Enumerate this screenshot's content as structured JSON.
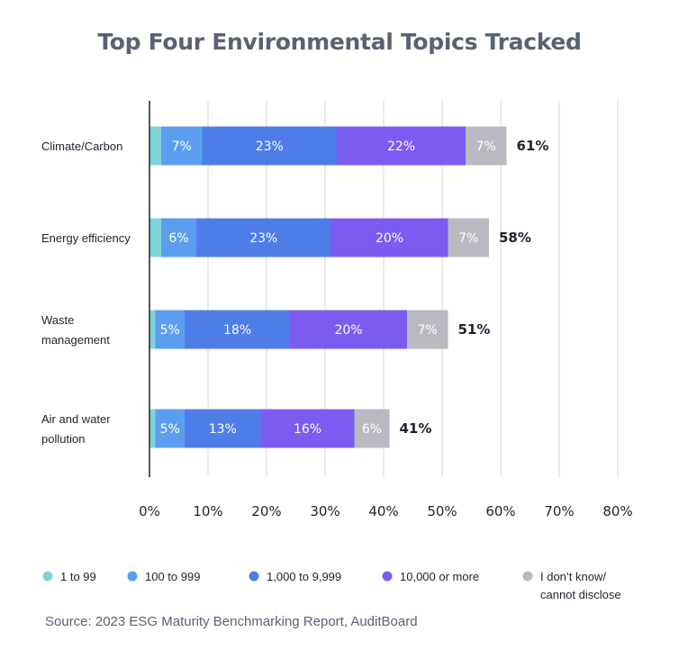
{
  "chart_data": {
    "type": "bar",
    "orientation": "horizontal",
    "stacked": true,
    "title": "Top Four Environmental Topics Tracked",
    "categories": [
      [
        "Climate/Carbon"
      ],
      [
        "Energy efficiency"
      ],
      [
        "Waste",
        "management"
      ],
      [
        "Air and water",
        "pollution"
      ]
    ],
    "series": [
      {
        "name": "1 to 99",
        "color": "#7fd3d8",
        "values": [
          2,
          2,
          1,
          1
        ],
        "labels": [
          "",
          "",
          "",
          ""
        ]
      },
      {
        "name": "100 to 999",
        "color": "#5b9ef0",
        "values": [
          7,
          6,
          5,
          5
        ],
        "labels": [
          "7%",
          "6%",
          "5%",
          "5%"
        ]
      },
      {
        "name": "1,000 to 9,999",
        "color": "#4f7de8",
        "values": [
          23,
          23,
          18,
          13
        ],
        "labels": [
          "23%",
          "23%",
          "18%",
          "13%"
        ]
      },
      {
        "name": "10,000 or more",
        "color": "#7c5cf0",
        "values": [
          22,
          20,
          20,
          16
        ],
        "labels": [
          "22%",
          "20%",
          "20%",
          "16%"
        ]
      },
      {
        "name": "I don't know/ cannot disclose",
        "legend_lines": [
          "I don’t know/",
          "cannot disclose"
        ],
        "color": "#b9bac1",
        "values": [
          7,
          7,
          7,
          6
        ],
        "labels": [
          "7%",
          "7%",
          "7%",
          "6%"
        ]
      }
    ],
    "totals": [
      "61%",
      "58%",
      "51%",
      "41%"
    ],
    "xlim": [
      0,
      80
    ],
    "xticks": [
      "0%",
      "10%",
      "20%",
      "30%",
      "40%",
      "50%",
      "60%",
      "70%",
      "80%"
    ],
    "grid": true,
    "legend": "bottom"
  },
  "source": "Source: 2023 ESG Maturity Benchmarking Report, AuditBoard"
}
